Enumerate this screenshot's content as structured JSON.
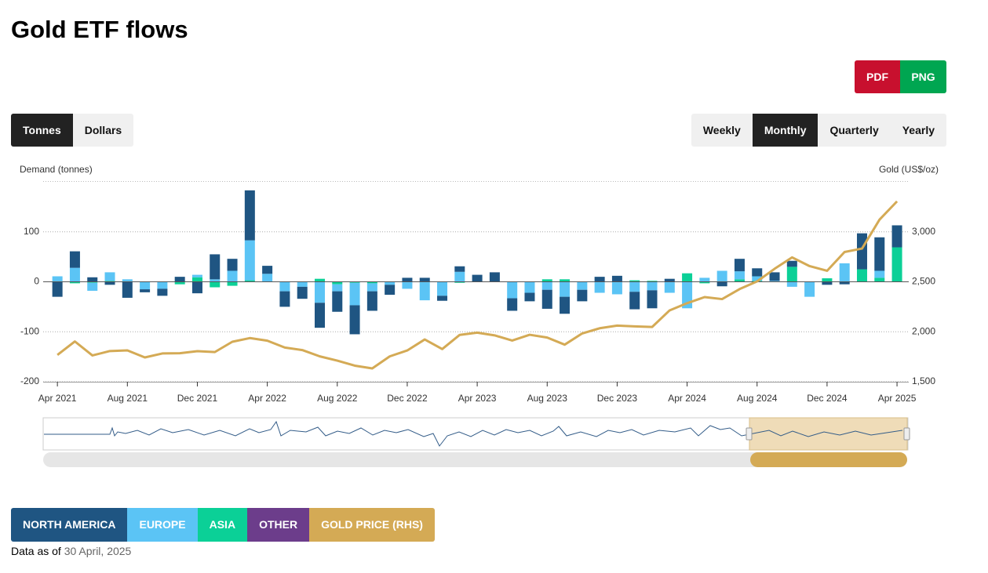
{
  "title": "Gold ETF flows",
  "export_buttons": [
    "PDF",
    "PNG"
  ],
  "unit_toggle": [
    "Tonnes",
    "Dollars"
  ],
  "unit_selected": 0,
  "period_toggle": [
    "Weekly",
    "Monthly",
    "Quarterly",
    "Yearly"
  ],
  "period_selected": 1,
  "chart_data": {
    "type": "bar",
    "stacked": true,
    "y_label": "Demand (tonnes)",
    "y2_label": "Gold (US$/oz)",
    "categories": [
      "Apr 2021",
      null,
      null,
      null,
      "Aug 2021",
      null,
      null,
      null,
      "Dec 2021",
      null,
      null,
      null,
      "Apr 2022",
      null,
      null,
      null,
      "Aug 2022",
      null,
      null,
      null,
      "Dec 2022",
      null,
      null,
      null,
      "Apr 2023",
      null,
      null,
      null,
      "Aug 2023",
      null,
      null,
      null,
      "Dec 2023",
      null,
      null,
      null,
      "Apr 2024",
      null,
      null,
      null,
      "Aug 2024",
      null,
      null,
      null,
      "Dec 2024",
      null,
      null,
      null,
      "Apr 2025"
    ],
    "ylim": [
      -200,
      200
    ],
    "yticks": [
      -200,
      -100,
      0,
      100
    ],
    "y2lim": [
      1500,
      3500
    ],
    "y2ticks": [
      {
        "value": 1500,
        "label": "1,500"
      },
      {
        "value": 2000,
        "label": "2,000"
      },
      {
        "value": 2500,
        "label": "2,500"
      },
      {
        "value": 3000,
        "label": "3,000"
      }
    ],
    "grid": true,
    "series": [
      {
        "name": "NORTH AMERICA",
        "color": "#1f5582",
        "values": [
          -30,
          33,
          9,
          -6,
          -32,
          -6,
          -14,
          10,
          -23,
          50,
          24,
          100,
          16,
          -31,
          -24,
          -50,
          -41,
          -58,
          -39,
          -20,
          8,
          8,
          -10,
          11,
          14,
          19,
          -25,
          -17,
          -38,
          -34,
          -23,
          10,
          12,
          -35,
          -36,
          6,
          0,
          0,
          -9,
          25,
          16,
          17,
          12,
          0,
          -6,
          -5,
          72,
          67,
          44
        ]
      },
      {
        "name": "EUROPE",
        "color": "#5bc4f5",
        "values": [
          11,
          28,
          -16,
          17,
          5,
          -15,
          -14,
          0,
          5,
          5,
          22,
          80,
          16,
          -19,
          -10,
          -42,
          -14,
          -45,
          -16,
          -6,
          -14,
          -37,
          -28,
          20,
          0,
          0,
          -33,
          -22,
          -16,
          -30,
          -16,
          -22,
          -25,
          -20,
          -17,
          -22,
          -53,
          8,
          22,
          16,
          9,
          2,
          -10,
          -30,
          0,
          37,
          0,
          14,
          0
        ]
      },
      {
        "name": "ASIA",
        "color": "#0bd097",
        "values": [
          0,
          -3,
          -2,
          2,
          0,
          0,
          0,
          -5,
          9,
          -11,
          -8,
          3,
          0,
          0,
          0,
          6,
          -5,
          -2,
          -3,
          0,
          0,
          0,
          0,
          -2,
          0,
          0,
          0,
          0,
          5,
          5,
          0,
          0,
          0,
          3,
          2,
          0,
          17,
          -3,
          0,
          5,
          2,
          0,
          30,
          0,
          7,
          0,
          25,
          8,
          69
        ]
      },
      {
        "name": "OTHER",
        "color": "#6c3d8b",
        "values": [
          0,
          0,
          0,
          0,
          0,
          0,
          0,
          0,
          0,
          0,
          0,
          0,
          0,
          0,
          0,
          0,
          0,
          0,
          0,
          0,
          0,
          0,
          0,
          0,
          0,
          0,
          0,
          0,
          0,
          0,
          0,
          0,
          0,
          0,
          0,
          0,
          0,
          0,
          0,
          0,
          0,
          0,
          0,
          0,
          0,
          0,
          0,
          0,
          0
        ]
      },
      {
        "name": "GOLD PRICE (RHS)",
        "color": "#d4aa55",
        "type": "line",
        "axis": "y2",
        "values": [
          1768,
          1903,
          1763,
          1807,
          1814,
          1743,
          1783,
          1785,
          1806,
          1797,
          1900,
          1937,
          1911,
          1842,
          1817,
          1754,
          1711,
          1661,
          1633,
          1754,
          1813,
          1923,
          1827,
          1969,
          1991,
          1964,
          1912,
          1970,
          1942,
          1871,
          1983,
          2035,
          2062,
          2054,
          2048,
          2214,
          2286,
          2347,
          2327,
          2427,
          2504,
          2630,
          2744,
          2657,
          2610,
          2798,
          2833,
          3122,
          3305
        ]
      }
    ]
  },
  "footer": {
    "label": "Data as of",
    "date": "30 April, 2025"
  }
}
